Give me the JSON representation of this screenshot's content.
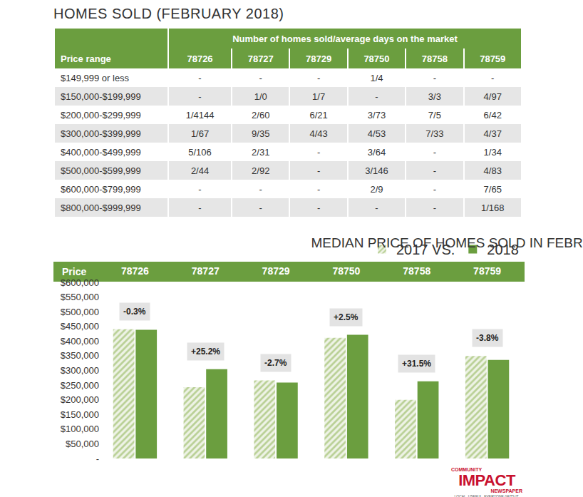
{
  "table": {
    "title": "HOMES SOLD (FEBRUARY 2018)",
    "subheader": "Number of homes sold/average days on the market",
    "columns": [
      "Price range",
      "78726",
      "78727",
      "78729",
      "78750",
      "78758",
      "78759"
    ],
    "rows": [
      [
        "$149,999 or less",
        "-",
        "-",
        "-",
        "1/4",
        "-",
        "-"
      ],
      [
        "$150,000-$199,999",
        "-",
        "1/0",
        "1/7",
        "-",
        "3/3",
        "4/97"
      ],
      [
        "$200,000-$299,999",
        "1/4144",
        "2/60",
        "6/21",
        "3/73",
        "7/5",
        "6/42"
      ],
      [
        "$300,000-$399,999",
        "1/67",
        "9/35",
        "4/43",
        "4/53",
        "7/33",
        "4/37"
      ],
      [
        "$400,000-$499,999",
        "5/106",
        "2/31",
        "-",
        "3/64",
        "-",
        "1/34"
      ],
      [
        "$500,000-$599,999",
        "2/44",
        "2/92",
        "-",
        "3/146",
        "-",
        "4/83"
      ],
      [
        "$600,000-$799,999",
        "-",
        "-",
        "-",
        "2/9",
        "-",
        "7/65"
      ],
      [
        "$800,000-$999,999",
        "-",
        "-",
        "-",
        "-",
        "-",
        "1/168"
      ]
    ]
  },
  "chart_data": {
    "type": "bar",
    "title": "MEDIAN PRICE OF HOMES SOLD IN FEBRUARY",
    "y_label": "Price",
    "categories": [
      "78726",
      "78727",
      "78729",
      "78750",
      "78758",
      "78759"
    ],
    "series": [
      {
        "name": "2017 VS.",
        "color": "#b9d095",
        "marker": "hatched",
        "values": [
          440000,
          243000,
          266000,
          411000,
          200000,
          349000
        ]
      },
      {
        "name": "2018",
        "color": "#6b9e3f",
        "marker": "solid",
        "values": [
          438700,
          304000,
          258800,
          421300,
          263000,
          335700
        ]
      }
    ],
    "annotations": [
      "-0.3%",
      "+25.2%",
      "-2.7%",
      "+2.5%",
      "+31.5%",
      "-3.8%"
    ],
    "ylim": [
      0,
      600000
    ],
    "yticks": [
      {
        "value": 0,
        "label": "-"
      },
      {
        "value": 50000,
        "label": "$50,000"
      },
      {
        "value": 100000,
        "label": "$100,000"
      },
      {
        "value": 150000,
        "label": "$150,000"
      },
      {
        "value": 200000,
        "label": "$200,000"
      },
      {
        "value": 250000,
        "label": "$250,000"
      },
      {
        "value": 300000,
        "label": "$300,000"
      },
      {
        "value": 350000,
        "label": "$350,000"
      },
      {
        "value": 400000,
        "label": "$400,000"
      },
      {
        "value": 450000,
        "label": "$450,000"
      },
      {
        "value": 500000,
        "label": "$500,000"
      },
      {
        "value": 550000,
        "label": "$550,000"
      },
      {
        "value": 600000,
        "label": "$600,000"
      }
    ],
    "grid": false,
    "legend": "top-right"
  },
  "logo": {
    "top": "COMMUNITY",
    "main": "IMPACT",
    "bottom": "NEWSPAPER",
    "tagline": "LOCAL. USEFUL. EVERYONE GETS IT."
  }
}
